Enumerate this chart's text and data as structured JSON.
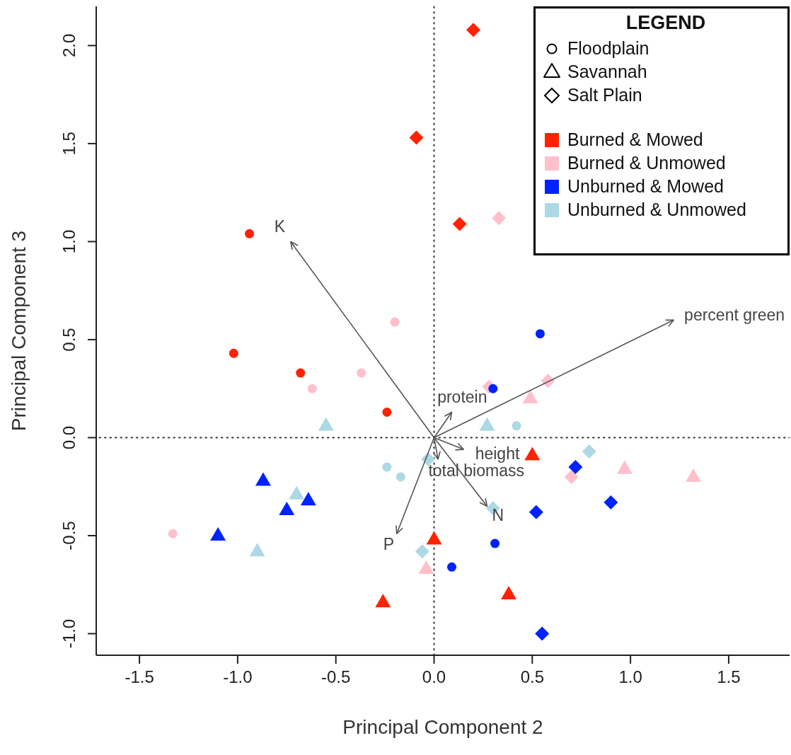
{
  "chart_data": {
    "type": "scatter",
    "xlabel": "Principal Component 2",
    "ylabel": "Principal Component 3",
    "legend_title": "LEGEND",
    "legend": "top right",
    "xlim": [
      -1.72,
      1.81
    ],
    "ylim": [
      -1.11,
      2.2
    ],
    "xticks": [
      {
        "value": -1.5,
        "label": "-1.5"
      },
      {
        "value": -1,
        "label": "-1.0"
      },
      {
        "value": -0.5,
        "label": "-0.5"
      },
      {
        "value": 0,
        "label": "0.0"
      },
      {
        "value": 0.5,
        "label": "0.5"
      },
      {
        "value": 1,
        "label": "1.0"
      },
      {
        "value": 1.5,
        "label": "1.5"
      }
    ],
    "yticks": [
      {
        "value": -1,
        "label": "-1.0"
      },
      {
        "value": -0.5,
        "label": "-0.5"
      },
      {
        "value": 0,
        "label": "0.0"
      },
      {
        "value": 0.5,
        "label": "0.5"
      },
      {
        "value": 1,
        "label": "1.0"
      },
      {
        "value": 1.5,
        "label": "1.5"
      },
      {
        "value": 2,
        "label": "2.0"
      }
    ],
    "ref_lines": [
      {
        "axis": "x",
        "value": 0,
        "line_style": "dotted",
        "color": "#333333"
      },
      {
        "axis": "y",
        "value": 0,
        "line_style": "dotted",
        "color": "#333333"
      }
    ],
    "annotations": [
      {
        "text": "K",
        "x": -0.73,
        "y": 1.0
      },
      {
        "text": "percent green",
        "x": 1.22,
        "y": 0.6
      },
      {
        "text": "protein",
        "x": 0.09,
        "y": 0.13
      },
      {
        "text": "height",
        "x": 0.15,
        "y": -0.06
      },
      {
        "text": "total biomass",
        "x": 0.02,
        "y": -0.11
      },
      {
        "text": "N",
        "x": 0.27,
        "y": -0.35
      },
      {
        "text": "P",
        "x": -0.19,
        "y": -0.49
      }
    ],
    "series": [
      {
        "name": "Floodplain",
        "marker": "circle",
        "color": "#000000"
      },
      {
        "name": "Savannah",
        "marker": "triangle",
        "color": "#000000"
      },
      {
        "name": "Salt Plain",
        "marker": "diamond",
        "color": "#000000"
      },
      {
        "name": "Burned & Mowed",
        "marker": "square",
        "color": "#ff2200"
      },
      {
        "name": "Burned & Unmowed",
        "marker": "square",
        "color": "#ffc0cb"
      },
      {
        "name": "Unburned & Mowed",
        "marker": "square",
        "color": "#0022ff"
      },
      {
        "name": "Unburned & Unmowed",
        "marker": "square",
        "color": "#add8e6"
      },
      {
        "marker": "triangle",
        "color": "#ff2200",
        "x": [
          0,
          -0.26,
          0.5,
          0.38
        ],
        "values": [
          -0.52,
          -0.84,
          -0.09,
          -0.8
        ]
      },
      {
        "marker": "triangle",
        "color": "#ffc0cb",
        "x": [
          -0.04,
          0.49,
          0.97,
          1.32
        ],
        "values": [
          -0.67,
          0.2,
          -0.16,
          -0.2
        ]
      },
      {
        "marker": "triangle",
        "color": "#0022ff",
        "x": [
          -0.87,
          -0.64,
          -0.75,
          -1.1
        ],
        "values": [
          -0.22,
          -0.32,
          -0.37,
          -0.5
        ]
      },
      {
        "marker": "triangle",
        "color": "#add8e6",
        "x": [
          -0.55,
          -0.7,
          -0.9,
          0.27
        ],
        "values": [
          0.06,
          -0.29,
          -0.58,
          0.06
        ]
      },
      {
        "marker": "diamond",
        "color": "#ff2200",
        "x": [
          -0.09,
          0.2,
          0.13
        ],
        "values": [
          1.53,
          2.08,
          1.09
        ]
      },
      {
        "marker": "diamond",
        "color": "#ffc0cb",
        "x": [
          0.33,
          0.58,
          0.28,
          0.7
        ],
        "values": [
          1.12,
          0.29,
          0.26,
          -0.2
        ]
      },
      {
        "marker": "diamond",
        "color": "#0022ff",
        "x": [
          0.72,
          0.52,
          0.9,
          0.55
        ],
        "values": [
          -0.15,
          -0.38,
          -0.33,
          -1.0
        ]
      },
      {
        "marker": "diamond",
        "color": "#add8e6",
        "x": [
          -0.03,
          -0.06,
          0.79,
          0.3
        ],
        "values": [
          -0.11,
          -0.58,
          -0.07,
          -0.36
        ]
      },
      {
        "marker": "circle",
        "color": "#ff2200",
        "x": [
          -0.94,
          -1.02,
          -0.68,
          -0.24
        ],
        "values": [
          1.04,
          0.43,
          0.33,
          0.13
        ]
      },
      {
        "marker": "circle",
        "color": "#ffc0cb",
        "x": [
          -0.2,
          -0.37,
          -0.62,
          -1.33
        ],
        "values": [
          0.59,
          0.33,
          0.25,
          -0.49
        ]
      },
      {
        "marker": "circle",
        "color": "#0022ff",
        "x": [
          0.54,
          0.3,
          0.31,
          0.09
        ],
        "values": [
          0.53,
          0.25,
          -0.54,
          -0.66
        ]
      },
      {
        "marker": "circle",
        "color": "#add8e6",
        "x": [
          -0.24,
          -0.17,
          0.42
        ],
        "values": [
          -0.15,
          -0.2,
          0.06
        ]
      },
      {
        "type": "line",
        "marker": "none",
        "color": "#555555",
        "x": [
          0,
          -0.73
        ],
        "values": [
          0,
          1.0
        ]
      },
      {
        "type": "line",
        "marker": "none",
        "color": "#555555",
        "x": [
          0,
          1.22
        ],
        "values": [
          0,
          0.6
        ]
      },
      {
        "type": "line",
        "marker": "none",
        "color": "#555555",
        "x": [
          0,
          0.09
        ],
        "values": [
          0,
          0.13
        ]
      },
      {
        "type": "line",
        "marker": "none",
        "color": "#555555",
        "x": [
          0,
          0.15
        ],
        "values": [
          0,
          -0.06
        ]
      },
      {
        "type": "line",
        "marker": "none",
        "color": "#555555",
        "x": [
          0,
          0.02
        ],
        "values": [
          0,
          -0.11
        ]
      },
      {
        "type": "line",
        "marker": "none",
        "color": "#555555",
        "x": [
          0,
          0.27
        ],
        "values": [
          0,
          -0.35
        ]
      },
      {
        "type": "line",
        "marker": "none",
        "color": "#555555",
        "x": [
          0,
          -0.19
        ],
        "values": [
          0,
          -0.49
        ]
      }
    ]
  }
}
